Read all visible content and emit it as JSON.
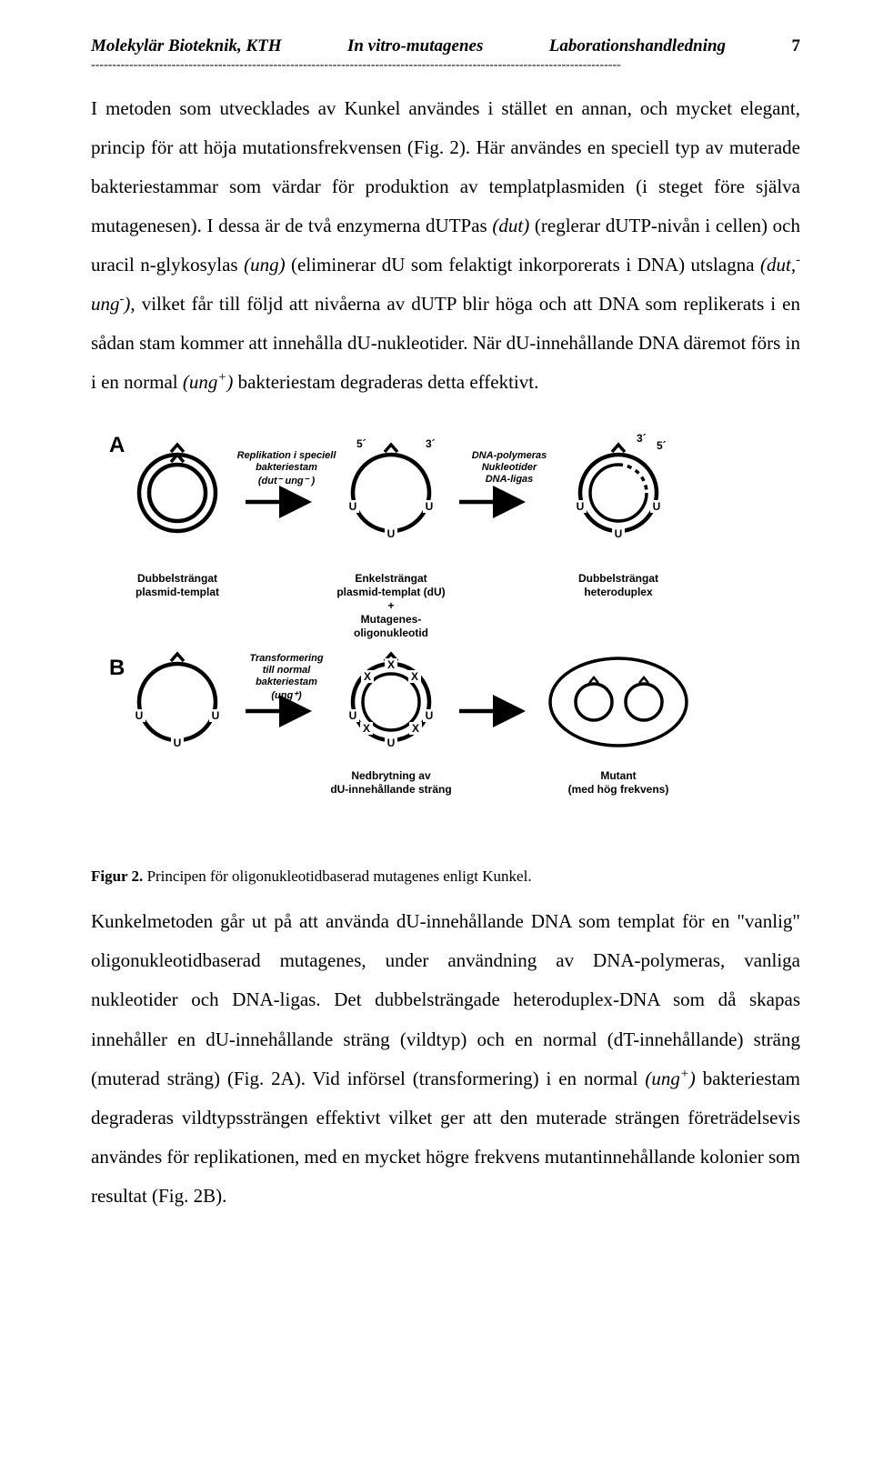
{
  "header": {
    "left": "Molekylär Bioteknik, KTH",
    "center": "In vitro-mutagenes",
    "right": "Laborationshandledning",
    "pagenum": "7",
    "rule": "-----------------------------------------------------------------------------------------------------------------------------"
  },
  "paragraph1_html": "I metoden som utvecklades av Kunkel användes i stället en annan, och mycket elegant, princip för att höja mutationsfrekvensen (Fig. 2). Här användes en speciell typ av muterade bakteriestammar som värdar för produktion av templatplasmiden (i steget före själva mutagenesen). I dessa är de två enzymerna dUTPas <span class='ital'>(dut)</span> (reglerar dUTP-nivån i cellen) och uracil n-glykosylas <span class='ital'>(ung)</span> (eliminerar dU som felaktigt inkorporerats i DNA) utslagna <span class='ital'>(dut,<span class='super'>-</span> ung<span class='super'>-</span>)</span>, vilket får till följd att nivåerna av dUTP blir höga och att DNA som replikerats i en sådan stam kommer att innehålla dU-nukleotider. När dU-innehållande DNA däremot förs in i en normal <span class='ital'>(ung<span class='super'>+</span>)</span> bakteriestam degraderas detta effektivt.",
  "figure": {
    "panelA": "A",
    "panelB": "B",
    "step1_l1": "Replikation i speciell",
    "step1_l2": "bakteriestam",
    "step1_l3": "(dut⁻ ung⁻ )",
    "step2_l1": "DNA-polymeras",
    "step2_l2": "Nukleotider",
    "step2_l3": "DNA-ligas",
    "five": "5´",
    "three": "3´",
    "U": "U",
    "labA1_l1": "Dubbelsträngat",
    "labA1_l2": "plasmid-templat",
    "labA2_l1": "Enkelsträngat",
    "labA2_l2": "plasmid-templat (dU)",
    "labA2_l3": "+",
    "labA2_l4": "Mutagenes-",
    "labA2_l5": "oligonukleotid",
    "labA3_l1": "Dubbelsträngat",
    "labA3_l2": "heteroduplex",
    "stepB_l1": "Transformering",
    "stepB_l2": "till normal",
    "stepB_l3": "bakteriestam",
    "stepB_l4": "(ung⁺)",
    "labB2_l1": "Nedbrytning av",
    "labB2_l2": "dU-innehållande sträng",
    "labB3_l1": "Mutant",
    "labB3_l2": "(med hög frekvens)",
    "X": "X"
  },
  "caption_bold": "Figur 2.",
  "caption_rest": " Principen för oligonukleotidbaserad mutagenes enligt Kunkel.",
  "paragraph2_html": "Kunkelmetoden går ut på att använda dU-innehållande DNA som templat för en \"vanlig\" oligonukleotidbaserad mutagenes, under användning av DNA-polymeras, vanliga nukleotider och DNA-ligas. Det dubbelsträngade heteroduplex-DNA som då skapas innehåller en dU-innehållande sträng (vildtyp) och en normal (dT-innehållande) sträng (muterad sträng) (Fig. 2A). Vid införsel (transformering) i en normal <span class='ital'>(ung<span class='super'>+</span>)</span> bakteriestam degraderas vildtypssträngen effektivt vilket ger att den muterade strängen företrädelsevis användes för replikationen, med en mycket högre frekvens mutantinnehållande kolonier som resultat (Fig. 2B)."
}
